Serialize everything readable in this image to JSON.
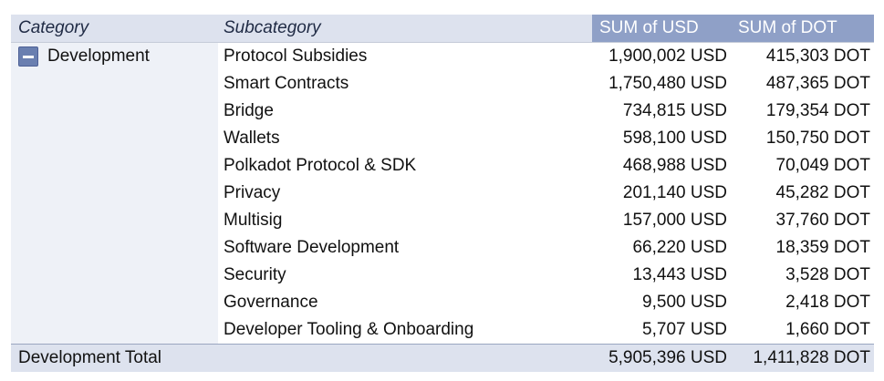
{
  "headers": {
    "category": "Category",
    "subcategory": "Subcategory",
    "sum_usd": "SUM of USD",
    "sum_dot": "SUM of DOT"
  },
  "group": {
    "name": "Development",
    "collapse_icon": "minus-icon"
  },
  "rows": [
    {
      "subcategory": "Protocol Subsidies",
      "usd": "1,900,002 USD",
      "dot": "415,303 DOT"
    },
    {
      "subcategory": "Smart Contracts",
      "usd": "1,750,480 USD",
      "dot": "487,365 DOT"
    },
    {
      "subcategory": "Bridge",
      "usd": "734,815 USD",
      "dot": "179,354 DOT"
    },
    {
      "subcategory": "Wallets",
      "usd": "598,100 USD",
      "dot": "150,750 DOT"
    },
    {
      "subcategory": "Polkadot Protocol & SDK",
      "usd": "468,988 USD",
      "dot": "70,049 DOT"
    },
    {
      "subcategory": "Privacy",
      "usd": "201,140 USD",
      "dot": "45,282 DOT"
    },
    {
      "subcategory": "Multisig",
      "usd": "157,000 USD",
      "dot": "37,760 DOT"
    },
    {
      "subcategory": "Software Development",
      "usd": "66,220 USD",
      "dot": "18,359 DOT"
    },
    {
      "subcategory": "Security",
      "usd": "13,443 USD",
      "dot": "3,528 DOT"
    },
    {
      "subcategory": "Governance",
      "usd": "9,500 USD",
      "dot": "2,418 DOT"
    },
    {
      "subcategory": "Developer Tooling & Onboarding",
      "usd": "5,707 USD",
      "dot": "1,660 DOT"
    }
  ],
  "total": {
    "label": "Development Total",
    "usd": "5,905,396 USD",
    "dot": "1,411,828 DOT"
  },
  "colors": {
    "header_bg": "#dde2ee",
    "value_header_bg": "#8fa0c7",
    "category_col_bg": "#eef1f7",
    "collapse_button": "#6a7fb0"
  }
}
